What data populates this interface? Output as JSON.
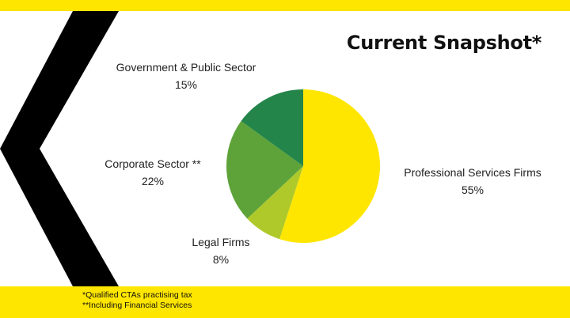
{
  "title": "Current Snapshot*",
  "chart_data": {
    "type": "pie",
    "categories": [
      "Professional Services Firms",
      "Legal Firms",
      "Corporate Sector **",
      "Government & Public Sector"
    ],
    "values": [
      55,
      8,
      22,
      15
    ],
    "value_labels": [
      "55%",
      "8%",
      "22%",
      "15%"
    ],
    "colors": [
      "#FFE600",
      "#AFC92A",
      "#5EA33A",
      "#23854A"
    ],
    "start_angle_deg": 0,
    "direction": "clockwise"
  },
  "footnotes": [
    "*Qualified CTAs practising tax",
    "**Including Financial Services"
  ]
}
